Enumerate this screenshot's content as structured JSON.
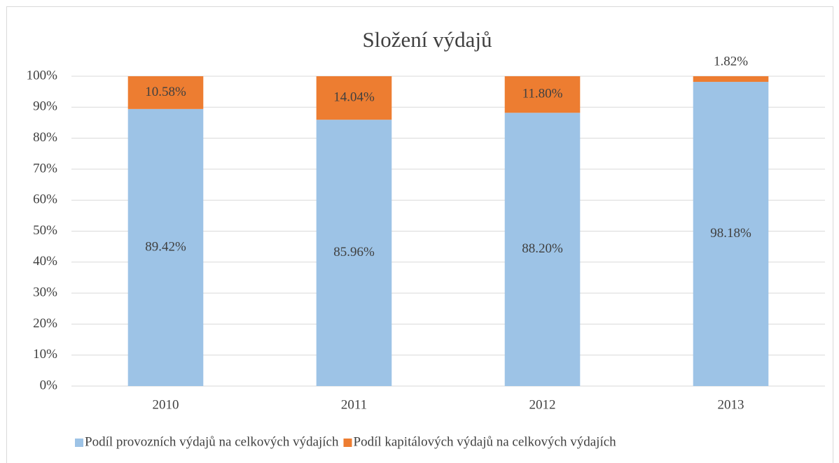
{
  "chart_data": {
    "type": "stacked_bar",
    "title": "Složení výdajů",
    "categories": [
      "2010",
      "2011",
      "2012",
      "2013"
    ],
    "series": [
      {
        "name": "Podíl provozních výdajů na celkových výdajích",
        "color": "#9dc3e6",
        "values": [
          89.42,
          85.96,
          88.2,
          98.18
        ],
        "value_labels": [
          "89.42%",
          "85.96%",
          "88.20%",
          "98.18%"
        ]
      },
      {
        "name": "Podíl kapitálových výdajů na celkových výdajích",
        "color": "#ed7d31",
        "values": [
          10.58,
          14.04,
          11.8,
          1.82
        ],
        "value_labels": [
          "10.58%",
          "14.04%",
          "11.80%",
          "1.82%"
        ]
      }
    ],
    "ylim": [
      0,
      100
    ],
    "yticks": [
      {
        "value": 0,
        "label": "0%"
      },
      {
        "value": 10,
        "label": "10%"
      },
      {
        "value": 20,
        "label": "20%"
      },
      {
        "value": 30,
        "label": "30%"
      },
      {
        "value": 40,
        "label": "40%"
      },
      {
        "value": 50,
        "label": "50%"
      },
      {
        "value": 60,
        "label": "60%"
      },
      {
        "value": 70,
        "label": "70%"
      },
      {
        "value": 80,
        "label": "80%"
      },
      {
        "value": 90,
        "label": "90%"
      },
      {
        "value": 100,
        "label": "100%"
      }
    ],
    "grid": true,
    "legend": "bottom"
  }
}
